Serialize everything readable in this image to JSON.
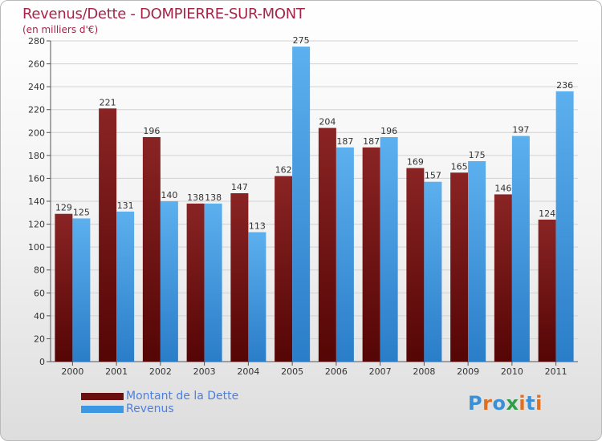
{
  "chart_data": {
    "type": "bar",
    "title": "Revenus/Dette - DOMPIERRE-SUR-MONT",
    "subtitle": "(en milliers d'€)",
    "categories": [
      "2000",
      "2001",
      "2002",
      "2003",
      "2004",
      "2005",
      "2006",
      "2007",
      "2008",
      "2009",
      "2010",
      "2011"
    ],
    "series": [
      {
        "name": "Montant de la Dette",
        "color": "#7a1414",
        "values": [
          129,
          221,
          196,
          138,
          147,
          162,
          204,
          187,
          169,
          165,
          146,
          124
        ]
      },
      {
        "name": "Revenus",
        "color": "#3d97e2",
        "values": [
          125,
          131,
          140,
          138,
          113,
          275,
          187,
          196,
          157,
          175,
          197,
          236
        ]
      }
    ],
    "ylim": [
      0,
      280
    ],
    "yticks": [
      0,
      20,
      40,
      60,
      80,
      100,
      120,
      140,
      160,
      180,
      200,
      220,
      240,
      260,
      280
    ],
    "grid": true,
    "legend": "bottom-left"
  },
  "brand": {
    "letters": [
      "P",
      "r",
      "o",
      "x",
      "i",
      "t",
      "i"
    ],
    "colors": [
      "#3b8fd6",
      "#e0701f",
      "#3b8fd6",
      "#2e9e47",
      "#e0701f",
      "#3b8fd6",
      "#e0701f"
    ]
  }
}
